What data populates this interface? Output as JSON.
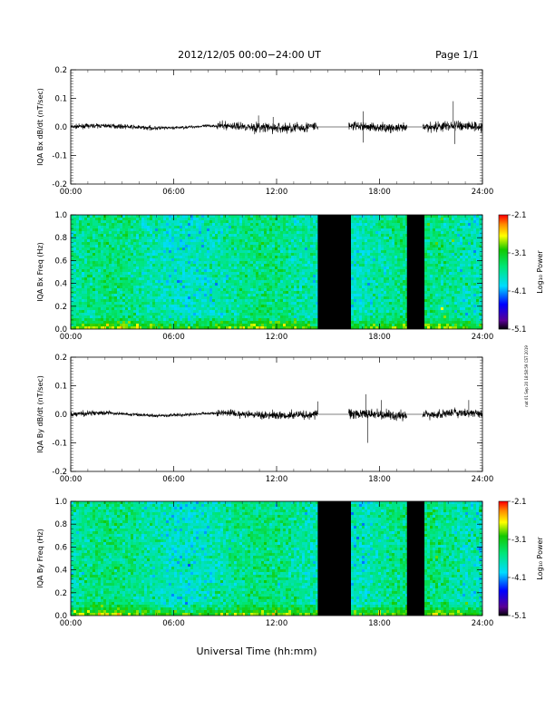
{
  "header": {
    "title": "2012/12/05  00:00−24:00 UT",
    "page": "Page 1/1"
  },
  "footer": {
    "xlabel": "Universal Time (hh:mm)",
    "side_note": "nat 01 Sep 20 18:58:59 CST 2019"
  },
  "chart_data": [
    {
      "type": "line",
      "ylabel": "IQA Bx dB/dt (nT/sec)",
      "xlim": [
        "00:00",
        "24:00"
      ],
      "ylim": [
        -0.2,
        0.2
      ],
      "x_ticks": [
        "00:00",
        "06:00",
        "12:00",
        "18:00",
        "24:00"
      ],
      "y_ticks": [
        "-0.2",
        "-0.1",
        "0.0",
        "0.1",
        "0.2"
      ],
      "envelope": [
        {
          "t0": 0,
          "t1": 5.5,
          "amp": 0.012
        },
        {
          "t0": 5.5,
          "t1": 8.5,
          "amp": 0.008
        },
        {
          "t0": 8.5,
          "t1": 10.5,
          "amp": 0.022
        },
        {
          "t0": 10.5,
          "t1": 14.4,
          "amp": 0.03
        }
      ],
      "gaps": [
        {
          "t0": 14.4,
          "t1": 16.2
        },
        {
          "t0": 19.6,
          "t1": 20.5
        }
      ],
      "trailing": [
        {
          "t0": 16.2,
          "t1": 19.6,
          "amp": 0.025
        },
        {
          "t0": 20.5,
          "t1": 24,
          "amp": 0.03
        }
      ],
      "spikes": [
        {
          "t": 10.95,
          "v": 0.04
        },
        {
          "t": 11.8,
          "v": 0.035
        },
        {
          "t": 17.05,
          "v": 0.055
        },
        {
          "t": 17.05,
          "v": -0.055
        },
        {
          "t": 22.3,
          "v": 0.09
        },
        {
          "t": 22.4,
          "v": -0.06
        }
      ]
    },
    {
      "type": "heatmap",
      "ylabel": "IQA Bx Freq (Hz)",
      "xlim": [
        "00:00",
        "24:00"
      ],
      "ylim": [
        0.0,
        1.0
      ],
      "x_ticks": [
        "00:00",
        "06:00",
        "12:00",
        "18:00",
        "24:00"
      ],
      "y_ticks": [
        "0.0",
        "0.2",
        "0.4",
        "0.6",
        "0.8",
        "1.0"
      ],
      "colorbar": {
        "label": "Log₁₀ Power",
        "ticks": [
          "-2.1",
          "-3.1",
          "-4.1",
          "-5.1"
        ],
        "range": [
          -5.1,
          -2.1
        ]
      },
      "gaps": [
        {
          "t0": 14.4,
          "t1": 16.2
        },
        {
          "t0": 19.6,
          "t1": 20.5
        }
      ]
    },
    {
      "type": "line",
      "ylabel": "IQA By dB/dt (nT/sec)",
      "xlim": [
        "00:00",
        "24:00"
      ],
      "ylim": [
        -0.2,
        0.2
      ],
      "x_ticks": [
        "00:00",
        "06:00",
        "12:00",
        "18:00",
        "24:00"
      ],
      "y_ticks": [
        "-0.2",
        "-0.1",
        "0.0",
        "0.1",
        "0.2"
      ],
      "envelope": [
        {
          "t0": 0,
          "t1": 2.5,
          "amp": 0.015
        },
        {
          "t0": 2.5,
          "t1": 8.5,
          "amp": 0.008
        },
        {
          "t0": 8.5,
          "t1": 11,
          "amp": 0.02
        },
        {
          "t0": 11,
          "t1": 14.4,
          "amp": 0.025
        }
      ],
      "gaps": [
        {
          "t0": 14.4,
          "t1": 16.2
        },
        {
          "t0": 19.6,
          "t1": 20.5
        }
      ],
      "trailing": [
        {
          "t0": 16.2,
          "t1": 19.6,
          "amp": 0.03
        },
        {
          "t0": 20.5,
          "t1": 24,
          "amp": 0.025
        }
      ],
      "spikes": [
        {
          "t": 14.4,
          "v": 0.045
        },
        {
          "t": 17.2,
          "v": 0.07
        },
        {
          "t": 17.3,
          "v": -0.1
        },
        {
          "t": 18.1,
          "v": 0.05
        },
        {
          "t": 23.2,
          "v": 0.05
        }
      ]
    },
    {
      "type": "heatmap",
      "ylabel": "IQA By Freq (Hz)",
      "xlim": [
        "00:00",
        "24:00"
      ],
      "ylim": [
        0.0,
        1.0
      ],
      "x_ticks": [
        "00:00",
        "06:00",
        "12:00",
        "18:00",
        "24:00"
      ],
      "y_ticks": [
        "0.0",
        "0.2",
        "0.4",
        "0.6",
        "0.8",
        "1.0"
      ],
      "colorbar": {
        "label": "Log₁₀ Power",
        "ticks": [
          "-2.1",
          "-3.1",
          "-4.1",
          "-5.1"
        ],
        "range": [
          -5.1,
          -2.1
        ]
      },
      "gaps": [
        {
          "t0": 14.4,
          "t1": 16.2
        },
        {
          "t0": 19.6,
          "t1": 20.5
        }
      ]
    }
  ]
}
